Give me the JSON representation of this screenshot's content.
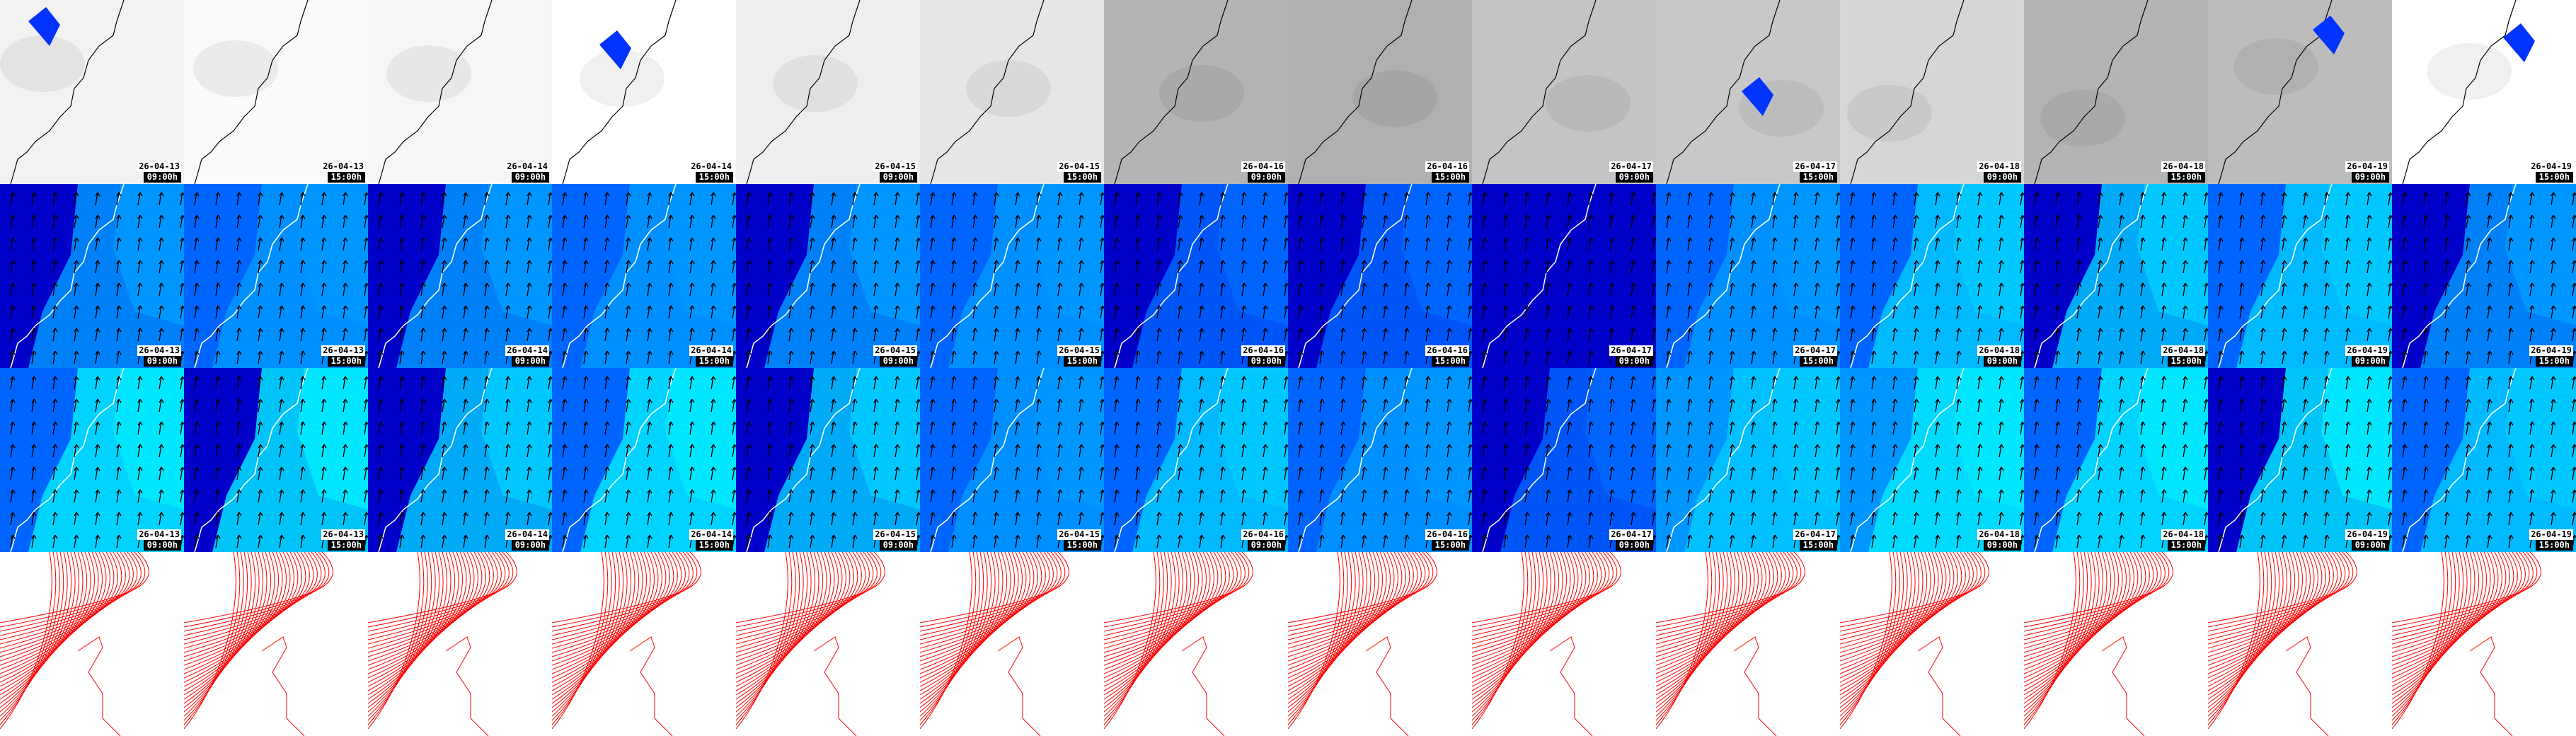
{
  "frames": [
    {
      "date": "26-04-13",
      "time": "09:00h"
    },
    {
      "date": "26-04-13",
      "time": "15:00h"
    },
    {
      "date": "26-04-14",
      "time": "09:00h"
    },
    {
      "date": "26-04-14",
      "time": "15:00h"
    },
    {
      "date": "26-04-15",
      "time": "09:00h"
    },
    {
      "date": "26-04-15",
      "time": "15:00h"
    },
    {
      "date": "26-04-16",
      "time": "09:00h"
    },
    {
      "date": "26-04-16",
      "time": "15:00h"
    },
    {
      "date": "26-04-17",
      "time": "09:00h"
    },
    {
      "date": "26-04-17",
      "time": "15:00h"
    },
    {
      "date": "26-04-18",
      "time": "09:00h"
    },
    {
      "date": "26-04-18",
      "time": "15:00h"
    },
    {
      "date": "26-04-19",
      "time": "09:00h"
    },
    {
      "date": "26-04-19",
      "time": "15:00h"
    }
  ],
  "rows": [
    {
      "name": "cloud-precip-map",
      "backgrounds": [
        "#f2f2f2",
        "#fafafa",
        "#f6f6f6",
        "#ffffff",
        "#eeeeee",
        "#e6e6e6",
        "#b4b4b4",
        "#b0b0b0",
        "#c4c4c4",
        "#c8c8c8",
        "#d6d6d6",
        "#b4b4b4",
        "#bcbcbc",
        "#ffffff"
      ],
      "precip_color": "#0033ff"
    },
    {
      "name": "wind-map-1",
      "left": [
        "#0000c8",
        "#0064ff",
        "#0000c8",
        "#0064ff",
        "#0000c8",
        "#0064ff",
        "#0000c8",
        "#0000c8",
        "#0000c8",
        "#0064ff",
        "#0064ff",
        "#0000c8",
        "#0064ff",
        "#0000c8"
      ],
      "right": [
        "#0096ff",
        "#0096ff",
        "#0096ff",
        "#0096ff",
        "#0096ff",
        "#0096ff",
        "#0064ff",
        "#0064ff",
        "#0000c8",
        "#0096ff",
        "#00c8ff",
        "#00c8ff",
        "#00c8ff",
        "#0096ff"
      ]
    },
    {
      "name": "wind-map-2",
      "left": [
        "#0064ff",
        "#0000c8",
        "#0000c8",
        "#0064ff",
        "#0000c8",
        "#0064ff",
        "#0064ff",
        "#0064ff",
        "#0000c8",
        "#0096ff",
        "#0096ff",
        "#0064ff",
        "#0000c8",
        "#0064ff"
      ],
      "right": [
        "#00e6ff",
        "#00e6ff",
        "#00c8ff",
        "#00e6ff",
        "#00c8ff",
        "#0096ff",
        "#00c8ff",
        "#0096ff",
        "#0064ff",
        "#00c8ff",
        "#00e6ff",
        "#00e6ff",
        "#00e6ff",
        "#00c8ff"
      ]
    },
    {
      "name": "pressure-contours",
      "line_color": "#ff0000"
    }
  ]
}
